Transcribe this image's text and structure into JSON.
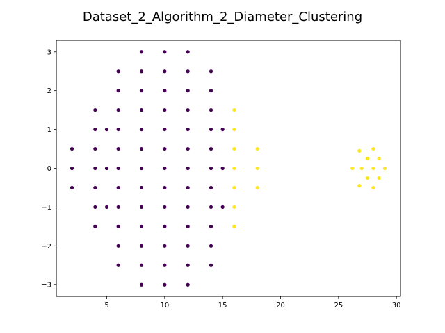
{
  "chart_data": {
    "type": "scatter",
    "title": "Dataset_2_Algorithm_2_Diameter_Clustering",
    "xlabel": "",
    "ylabel": "",
    "xlim": [
      0.65,
      30.35
    ],
    "ylim": [
      -3.3,
      3.3
    ],
    "xticks": [
      5,
      10,
      15,
      20,
      25,
      30
    ],
    "yticks": [
      -3,
      -2,
      -1,
      0,
      1,
      2,
      3
    ],
    "xtick_labels": [
      "5",
      "10",
      "15",
      "20",
      "25",
      "30"
    ],
    "ytick_labels": [
      "−3",
      "−2",
      "−1",
      "0",
      "1",
      "2",
      "3"
    ],
    "grid": false,
    "cluster_colors": [
      "#440154",
      "#fde725"
    ],
    "series": [
      {
        "color": "#440154",
        "points": [
          [
            2,
            0.5
          ],
          [
            2,
            0
          ],
          [
            2,
            -0.5
          ],
          [
            4,
            1.5
          ],
          [
            4,
            1
          ],
          [
            4,
            0.5
          ],
          [
            4,
            0
          ],
          [
            4,
            -0.5
          ],
          [
            4,
            -1
          ],
          [
            4,
            -1.5
          ],
          [
            5,
            1
          ],
          [
            5,
            0
          ],
          [
            5,
            -1
          ],
          [
            6,
            2.5
          ],
          [
            6,
            2
          ],
          [
            6,
            1.5
          ],
          [
            6,
            1
          ],
          [
            6,
            0.5
          ],
          [
            6,
            0
          ],
          [
            6,
            -0.5
          ],
          [
            6,
            -1
          ],
          [
            6,
            -1.5
          ],
          [
            6,
            -2
          ],
          [
            6,
            -2.5
          ],
          [
            8,
            3
          ],
          [
            8,
            2.5
          ],
          [
            8,
            2
          ],
          [
            8,
            1.5
          ],
          [
            8,
            1
          ],
          [
            8,
            0.5
          ],
          [
            8,
            0
          ],
          [
            8,
            -0.5
          ],
          [
            8,
            -1
          ],
          [
            8,
            -1.5
          ],
          [
            8,
            -2
          ],
          [
            8,
            -2.5
          ],
          [
            8,
            -3
          ],
          [
            10,
            3
          ],
          [
            10,
            2.5
          ],
          [
            10,
            2
          ],
          [
            10,
            1.5
          ],
          [
            10,
            1
          ],
          [
            10,
            0.5
          ],
          [
            10,
            0
          ],
          [
            10,
            -0.5
          ],
          [
            10,
            -1
          ],
          [
            10,
            -1.5
          ],
          [
            10,
            -2
          ],
          [
            10,
            -2.5
          ],
          [
            10,
            -3
          ],
          [
            12,
            3
          ],
          [
            12,
            2.5
          ],
          [
            12,
            2
          ],
          [
            12,
            1.5
          ],
          [
            12,
            1
          ],
          [
            12,
            0.5
          ],
          [
            12,
            0
          ],
          [
            12,
            -0.5
          ],
          [
            12,
            -1
          ],
          [
            12,
            -1.5
          ],
          [
            12,
            -2
          ],
          [
            12,
            -2.5
          ],
          [
            12,
            -3
          ],
          [
            14,
            2.5
          ],
          [
            14,
            2
          ],
          [
            14,
            1.5
          ],
          [
            14,
            1
          ],
          [
            14,
            0.5
          ],
          [
            14,
            0
          ],
          [
            14,
            -0.5
          ],
          [
            14,
            -1
          ],
          [
            14,
            -1.5
          ],
          [
            14,
            -2
          ],
          [
            14,
            -2.5
          ],
          [
            15,
            1
          ],
          [
            15,
            0
          ],
          [
            15,
            -1
          ]
        ]
      },
      {
        "color": "#fde725",
        "points": [
          [
            16,
            1.5
          ],
          [
            16,
            1
          ],
          [
            16,
            0.5
          ],
          [
            16,
            0
          ],
          [
            16,
            -0.5
          ],
          [
            16,
            -1
          ],
          [
            16,
            -1.5
          ],
          [
            18,
            0.5
          ],
          [
            18,
            0
          ],
          [
            18,
            -0.5
          ],
          [
            26.2,
            0
          ],
          [
            26.8,
            0.45
          ],
          [
            26.8,
            -0.45
          ],
          [
            27,
            0
          ],
          [
            27.5,
            0.25
          ],
          [
            27.5,
            -0.25
          ],
          [
            28,
            0.5
          ],
          [
            28,
            0
          ],
          [
            28,
            -0.5
          ],
          [
            28.5,
            0.25
          ],
          [
            28.5,
            -0.25
          ],
          [
            29,
            0
          ]
        ]
      }
    ]
  }
}
